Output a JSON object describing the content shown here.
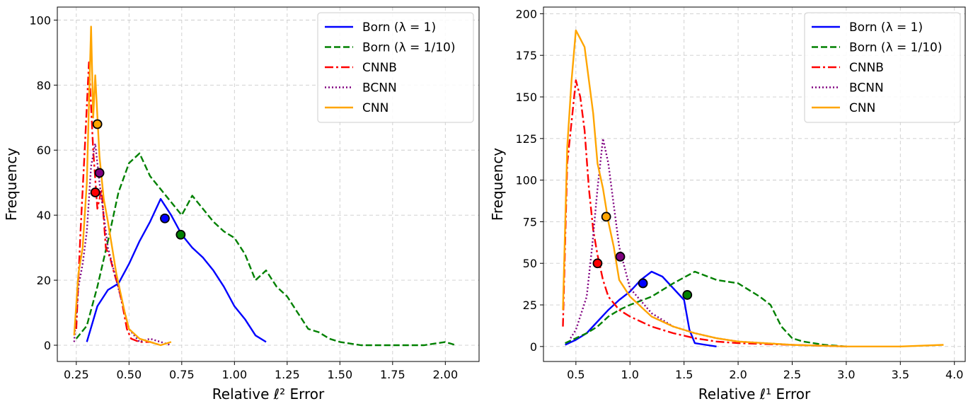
{
  "colors": {
    "born1": "#0000ff",
    "born10": "#008000",
    "cnnb": "#ff0000",
    "bcnn": "#800080",
    "cnn": "#ffa500"
  },
  "chart_data": [
    {
      "type": "line",
      "xlabel": "Relative ℓ² Error",
      "ylabel": "Frequency",
      "xlim": [
        0.16,
        2.16
      ],
      "ylim": [
        -5,
        104
      ],
      "xticks": [
        0.25,
        0.5,
        0.75,
        1.0,
        1.25,
        1.5,
        1.75,
        2.0
      ],
      "xtick_labels": [
        "0.25",
        "0.50",
        "0.75",
        "1.00",
        "1.25",
        "1.50",
        "1.75",
        "2.00"
      ],
      "yticks": [
        0,
        20,
        40,
        60,
        80,
        100
      ],
      "ytick_labels": [
        "0",
        "20",
        "40",
        "60",
        "80",
        "100"
      ],
      "grid": true,
      "legend_position": "top-right",
      "series": [
        {
          "name": "Born (λ = 1)",
          "key": "born1",
          "style": "solid",
          "x": [
            0.3,
            0.35,
            0.4,
            0.45,
            0.5,
            0.55,
            0.6,
            0.65,
            0.7,
            0.75,
            0.8,
            0.85,
            0.9,
            0.95,
            1.0,
            1.05,
            1.1,
            1.15
          ],
          "y": [
            1,
            12,
            17,
            19,
            25,
            32,
            38,
            45,
            40,
            34,
            30,
            27,
            23,
            18,
            12,
            8,
            3,
            1
          ],
          "marker": {
            "x": 0.67,
            "y": 39
          }
        },
        {
          "name": "Born (λ = 1/10)",
          "key": "born10",
          "style": "dashed",
          "x": [
            0.25,
            0.3,
            0.35,
            0.4,
            0.45,
            0.5,
            0.55,
            0.6,
            0.65,
            0.7,
            0.75,
            0.8,
            0.85,
            0.9,
            0.95,
            1.0,
            1.05,
            1.1,
            1.15,
            1.2,
            1.25,
            1.3,
            1.35,
            1.4,
            1.45,
            1.5,
            1.6,
            1.7,
            1.8,
            1.9,
            2.0,
            2.05
          ],
          "y": [
            2,
            6,
            18,
            32,
            47,
            56,
            59,
            52,
            48,
            44,
            40,
            46,
            42,
            38,
            35,
            33,
            28,
            20,
            23,
            18,
            15,
            10,
            5,
            4,
            2,
            1,
            0,
            0,
            0,
            0,
            1,
            0
          ],
          "marker": {
            "x": 0.745,
            "y": 34
          }
        },
        {
          "name": "CNNB",
          "key": "cnnb",
          "style": "dashdot",
          "x": [
            0.25,
            0.27,
            0.29,
            0.31,
            0.33,
            0.35,
            0.37,
            0.39,
            0.41,
            0.43,
            0.45,
            0.47,
            0.49,
            0.51,
            0.55,
            0.6,
            0.65
          ],
          "y": [
            5,
            35,
            60,
            87,
            60,
            42,
            48,
            30,
            27,
            22,
            18,
            12,
            5,
            2,
            1,
            1,
            0
          ],
          "marker": {
            "x": 0.34,
            "y": 47
          }
        },
        {
          "name": "BCNN",
          "key": "bcnn",
          "style": "dotted",
          "x": [
            0.24,
            0.26,
            0.28,
            0.3,
            0.32,
            0.34,
            0.36,
            0.38,
            0.4,
            0.42,
            0.44,
            0.46,
            0.48,
            0.5,
            0.55,
            0.6,
            0.65,
            0.7
          ],
          "y": [
            1,
            18,
            25,
            35,
            55,
            62,
            50,
            40,
            30,
            25,
            20,
            15,
            10,
            5,
            1,
            2,
            1,
            0
          ],
          "marker": {
            "x": 0.36,
            "y": 53
          }
        },
        {
          "name": "CNN",
          "key": "cnn",
          "style": "solid",
          "x": [
            0.24,
            0.26,
            0.28,
            0.3,
            0.32,
            0.33,
            0.34,
            0.36,
            0.38,
            0.4,
            0.42,
            0.44,
            0.46,
            0.48,
            0.5,
            0.55,
            0.6,
            0.65,
            0.7
          ],
          "y": [
            3,
            22,
            30,
            50,
            98,
            70,
            83,
            58,
            45,
            38,
            30,
            22,
            16,
            10,
            5,
            2,
            1,
            0,
            1
          ],
          "marker": {
            "x": 0.35,
            "y": 68
          }
        }
      ]
    },
    {
      "type": "line",
      "xlabel": "Relative ℓ¹ Error",
      "ylabel": "Frequency",
      "xlim": [
        0.2,
        4.1
      ],
      "ylim": [
        -9,
        204
      ],
      "xticks": [
        0.5,
        1.0,
        1.5,
        2.0,
        2.5,
        3.0,
        3.5,
        4.0
      ],
      "xtick_labels": [
        "0.5",
        "1.0",
        "1.5",
        "2.0",
        "2.5",
        "3.0",
        "3.5",
        "4.0"
      ],
      "yticks": [
        0,
        25,
        50,
        75,
        100,
        125,
        150,
        175,
        200
      ],
      "ytick_labels": [
        "0",
        "25",
        "50",
        "75",
        "100",
        "125",
        "150",
        "175",
        "200"
      ],
      "grid": true,
      "legend_position": "top-right",
      "series": [
        {
          "name": "Born (λ = 1)",
          "key": "born1",
          "style": "solid",
          "x": [
            0.4,
            0.5,
            0.6,
            0.7,
            0.8,
            0.9,
            1.0,
            1.1,
            1.2,
            1.3,
            1.4,
            1.5,
            1.55,
            1.6,
            1.7,
            1.8
          ],
          "y": [
            1,
            4,
            8,
            15,
            22,
            28,
            33,
            40,
            45,
            42,
            35,
            28,
            10,
            2,
            1,
            0
          ],
          "marker": {
            "x": 1.12,
            "y": 38
          }
        },
        {
          "name": "Born (λ = 1/10)",
          "key": "born10",
          "style": "dashed",
          "x": [
            0.4,
            0.5,
            0.6,
            0.7,
            0.8,
            0.9,
            1.0,
            1.2,
            1.4,
            1.6,
            1.8,
            2.0,
            2.2,
            2.3,
            2.4,
            2.5,
            2.6,
            2.8,
            3.0
          ],
          "y": [
            2,
            5,
            8,
            12,
            18,
            22,
            25,
            30,
            38,
            45,
            40,
            38,
            30,
            25,
            12,
            5,
            3,
            1,
            0
          ],
          "marker": {
            "x": 1.53,
            "y": 31
          }
        },
        {
          "name": "CNNB",
          "key": "cnnb",
          "style": "dashdot",
          "x": [
            0.38,
            0.42,
            0.46,
            0.5,
            0.54,
            0.58,
            0.62,
            0.66,
            0.7,
            0.75,
            0.8,
            0.9,
            1.0,
            1.2,
            1.4,
            1.6,
            1.8,
            2.0,
            2.5,
            3.0
          ],
          "y": [
            12,
            110,
            135,
            160,
            150,
            130,
            95,
            70,
            55,
            40,
            30,
            22,
            18,
            12,
            8,
            5,
            3,
            2,
            1,
            0
          ],
          "marker": {
            "x": 0.7,
            "y": 50
          }
        },
        {
          "name": "BCNN",
          "key": "bcnn",
          "style": "dotted",
          "x": [
            0.45,
            0.5,
            0.6,
            0.65,
            0.7,
            0.75,
            0.8,
            0.85,
            0.9,
            1.0,
            1.2,
            1.4,
            1.6,
            1.8,
            2.0,
            2.5,
            3.0
          ],
          "y": [
            5,
            10,
            30,
            60,
            95,
            125,
            110,
            85,
            60,
            35,
            20,
            12,
            8,
            5,
            3,
            1,
            0
          ],
          "marker": {
            "x": 0.91,
            "y": 54
          }
        },
        {
          "name": "CNN",
          "key": "cnn",
          "style": "solid",
          "x": [
            0.38,
            0.42,
            0.46,
            0.5,
            0.54,
            0.58,
            0.62,
            0.66,
            0.7,
            0.75,
            0.8,
            0.85,
            0.9,
            1.0,
            1.2,
            1.4,
            1.6,
            1.8,
            2.0,
            2.5,
            3.0,
            3.5,
            3.9
          ],
          "y": [
            22,
            120,
            160,
            190,
            185,
            180,
            160,
            140,
            110,
            95,
            75,
            60,
            40,
            30,
            18,
            12,
            8,
            5,
            3,
            1,
            0,
            0,
            1
          ],
          "marker": {
            "x": 0.78,
            "y": 78
          }
        }
      ]
    }
  ]
}
